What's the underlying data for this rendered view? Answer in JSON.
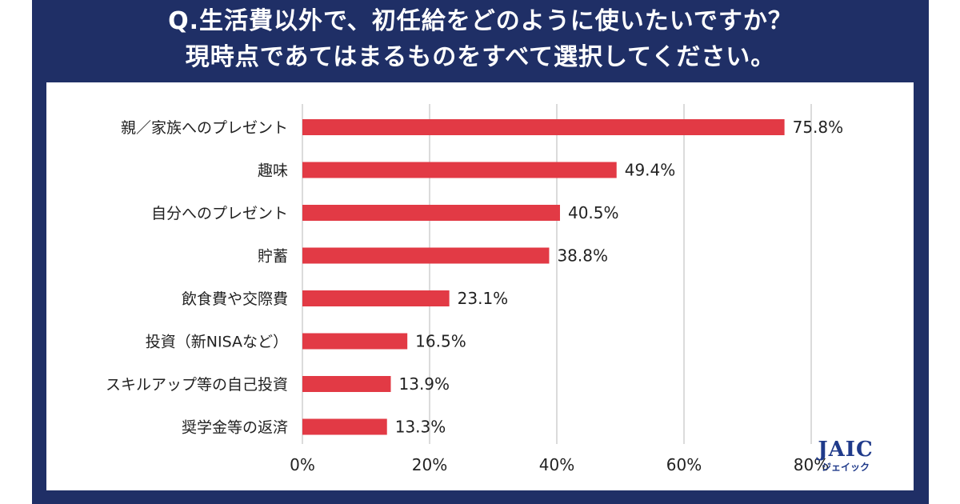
{
  "header": {
    "title_line1": "Q.生活費以外で、初任給をどのように使いたいですか？",
    "title_line2": "現時点であてはまるものをすべて選択してください。"
  },
  "logo": {
    "main": "JAIC",
    "sub": "ジェイック"
  },
  "colors": {
    "frame": "#1f2f66",
    "bar": "#e23a45",
    "grid": "#cfcfcf"
  },
  "chart_data": {
    "type": "bar",
    "orientation": "horizontal",
    "categories": [
      "親／家族へのプレゼント",
      "趣味",
      "自分へのプレゼント",
      "貯蓄",
      "飲食費や交際費",
      "投資（新NISAなど）",
      "スキルアップ等の自己投資",
      "奨学金等の返済"
    ],
    "values": [
      75.8,
      49.4,
      40.5,
      38.8,
      23.1,
      16.5,
      13.9,
      13.3
    ],
    "value_labels": [
      "75.8%",
      "49.4%",
      "40.5%",
      "38.8%",
      "23.1%",
      "16.5%",
      "13.9%",
      "13.3%"
    ],
    "xlim": [
      0,
      80
    ],
    "xticks": [
      0,
      20,
      40,
      60,
      80
    ],
    "xtick_labels": [
      "0%",
      "20%",
      "40%",
      "60%",
      "80%"
    ],
    "grid": true
  }
}
